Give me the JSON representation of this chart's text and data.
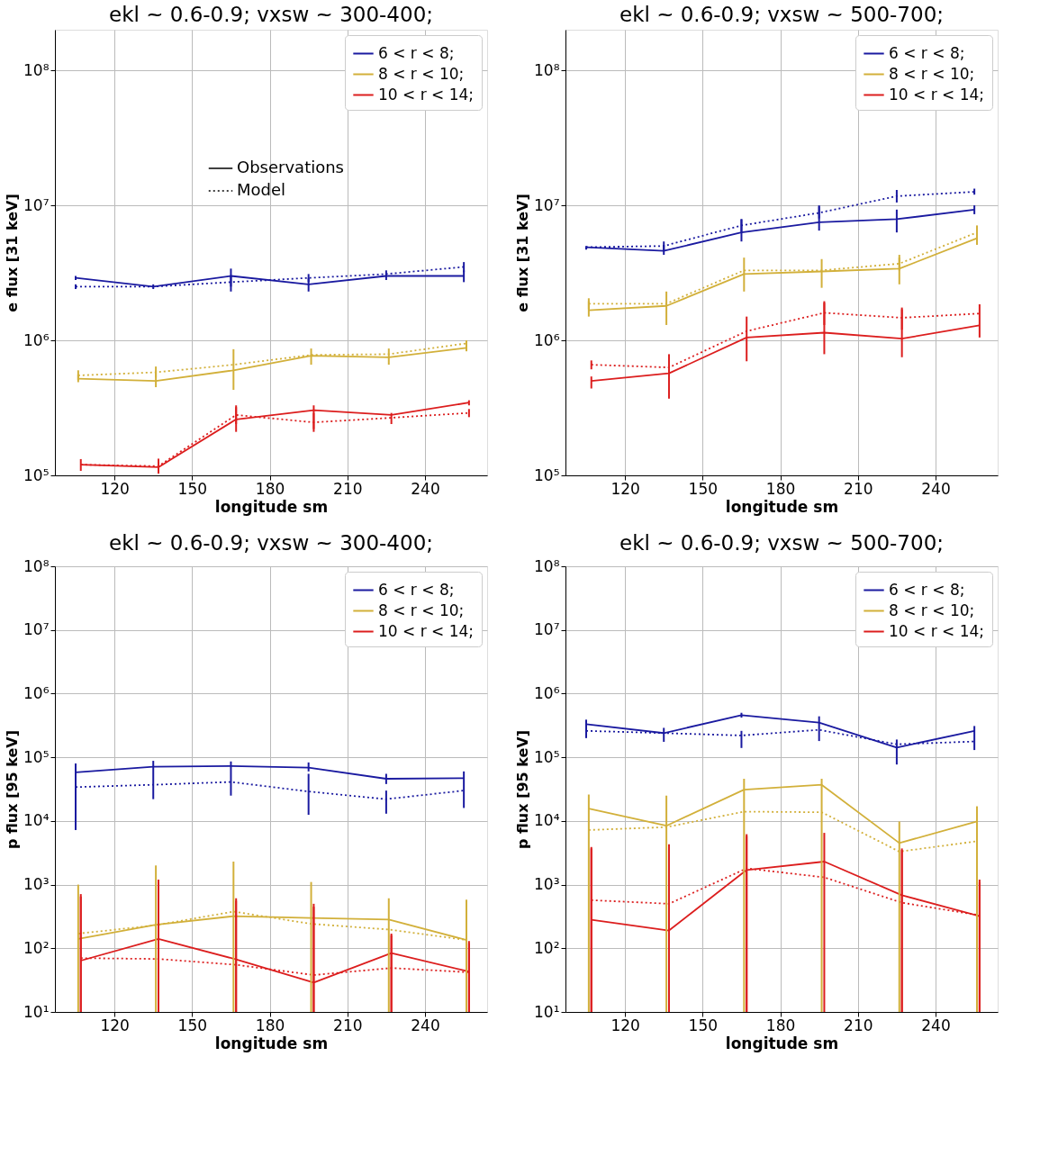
{
  "chart_data": [
    {
      "type": "line",
      "title": "ekl ~ 0.6-0.9; vxsw ~ 300-400;",
      "xlabel": "longitude sm",
      "ylabel": "e flux [31 keV]",
      "log": "y",
      "grid": true,
      "legend": "top right",
      "annotations": [
        "Observations",
        "Model"
      ],
      "xlim": [
        97,
        264
      ],
      "xticks": [
        120,
        150,
        180,
        210,
        240
      ],
      "ylim": [
        100000.0,
        200000000.0
      ],
      "yticks": [
        {
          "value": 100000.0,
          "label": "10⁵"
        },
        {
          "value": 1000000.0,
          "label": "10⁶"
        },
        {
          "value": 10000000.0,
          "label": "10⁷"
        },
        {
          "value": 100000000.0,
          "label": "10⁸"
        }
      ],
      "series": [
        {
          "name": "6 < r < 8;",
          "color": "#1a1aa0",
          "line_style": "solid",
          "x": [
            105,
            135,
            165,
            195,
            225,
            255
          ],
          "values": [
            2900000.0,
            2500000.0,
            3000000.0,
            2600000.0,
            3000000.0,
            3000000.0
          ],
          "errors": [
            [
              2800000.0,
              3000000.0
            ],
            [
              2400000.0,
              2600000.0
            ],
            [
              2500000.0,
              3400000.0
            ],
            [
              2300000.0,
              2900000.0
            ],
            [
              2800000.0,
              3300000.0
            ],
            [
              2700000.0,
              3300000.0
            ]
          ]
        },
        {
          "name": "8 < r < 10;",
          "color": "#d2b03a",
          "line_style": "solid",
          "x": [
            106,
            136,
            166,
            196,
            226,
            256
          ],
          "values": [
            520000.0,
            500000.0,
            600000.0,
            770000.0,
            750000.0,
            880000.0
          ],
          "errors": [
            [
              490000.0,
              560000.0
            ],
            [
              450000.0,
              600000.0
            ],
            [
              430000.0,
              860000.0
            ],
            [
              660000.0,
              870000.0
            ],
            [
              660000.0,
              870000.0
            ],
            [
              830000.0,
              970000.0
            ]
          ]
        },
        {
          "name": "10 < r < 14;",
          "color": "#dc1e1e",
          "line_style": "solid",
          "x": [
            107,
            137,
            167,
            197,
            227,
            257
          ],
          "values": [
            120000.0,
            115000.0,
            260000.0,
            304000.0,
            280000.0,
            346000.0
          ],
          "errors": [
            [
              108000.0,
              132000.0
            ],
            [
              103000.0,
              133000.0
            ],
            [
              210000.0,
              330000.0
            ],
            [
              220000.0,
              330000.0
            ],
            [
              240000.0,
              290000.0
            ],
            [
              330000.0,
              360000.0
            ]
          ]
        },
        {
          "color": "#1a1aa0",
          "line_style": "dotted",
          "x": [
            105,
            135,
            165,
            195,
            225,
            255
          ],
          "values": [
            2500000.0,
            2500000.0,
            2700000.0,
            2900000.0,
            3100000.0,
            3500000.0
          ],
          "errors": [
            [
              2400000.0,
              2600000.0
            ],
            null,
            [
              2300000.0,
              3000000.0
            ],
            [
              2700000.0,
              3100000.0
            ],
            null,
            [
              3200000.0,
              3800000.0
            ]
          ]
        },
        {
          "color": "#d2b03a",
          "line_style": "dotted",
          "x": [
            106,
            136,
            166,
            196,
            226,
            256
          ],
          "values": [
            550000.0,
            580000.0,
            660000.0,
            780000.0,
            790000.0,
            950000.0
          ],
          "errors": [
            [
              510000.0,
              600000.0
            ],
            [
              530000.0,
              640000.0
            ],
            null,
            null,
            null,
            [
              880000.0,
              1000000.0
            ]
          ]
        },
        {
          "color": "#dc1e1e",
          "line_style": "dotted",
          "x": [
            107,
            137,
            167,
            197,
            227,
            257
          ],
          "values": [
            120000.0,
            117000.0,
            280000.0,
            247000.0,
            267000.0,
            290000.0
          ],
          "errors": [
            null,
            [
              107000.0,
              125000.0
            ],
            [
              240000.0,
              320000.0
            ],
            [
              210000.0,
              290000.0
            ],
            null,
            [
              270000.0,
              310000.0
            ]
          ]
        }
      ]
    },
    {
      "type": "line",
      "title": "ekl ~ 0.6-0.9; vxsw ~ 500-700;",
      "xlabel": "longitude sm",
      "ylabel": "e flux [31 keV]",
      "log": "y",
      "grid": true,
      "legend": "top right",
      "xlim": [
        97,
        264
      ],
      "xticks": [
        120,
        150,
        180,
        210,
        240
      ],
      "ylim": [
        100000.0,
        200000000.0
      ],
      "yticks": [
        {
          "value": 100000.0,
          "label": "10⁵"
        },
        {
          "value": 1000000.0,
          "label": "10⁶"
        },
        {
          "value": 10000000.0,
          "label": "10⁷"
        },
        {
          "value": 100000000.0,
          "label": "10⁸"
        }
      ],
      "series": [
        {
          "name": "6 < r < 8;",
          "color": "#1a1aa0",
          "line_style": "solid",
          "x": [
            105,
            135,
            165,
            195,
            225,
            255
          ],
          "values": [
            4900000.0,
            4600000.0,
            6300000.0,
            7500000.0,
            7900000.0,
            9300000.0
          ],
          "errors": [
            [
              4700000.0,
              5000000.0
            ],
            [
              4300000.0,
              5100000.0
            ],
            [
              5400000.0,
              7900000.0
            ],
            [
              6500000.0,
              10000000.0
            ],
            [
              6300000.0,
              9300000.0
            ],
            [
              8600000.0,
              10000000.0
            ]
          ]
        },
        {
          "name": "8 < r < 10;",
          "color": "#d2b03a",
          "line_style": "solid",
          "x": [
            106,
            136,
            166,
            196,
            226,
            256
          ],
          "values": [
            1670000.0,
            1800000.0,
            3100000.0,
            3240000.0,
            3400000.0,
            5700000.0
          ],
          "errors": [
            [
              1500000.0,
              1950000.0
            ],
            [
              1300000.0,
              2300000.0
            ],
            [
              2300000.0,
              4100000.0
            ],
            [
              2450000.0,
              4000000.0
            ],
            [
              2600000.0,
              4300000.0
            ],
            [
              5100000.0,
              7100000.0
            ]
          ]
        },
        {
          "name": "10 < r < 14;",
          "color": "#dc1e1e",
          "line_style": "solid",
          "x": [
            107,
            137,
            167,
            197,
            227,
            257
          ],
          "values": [
            500000.0,
            570000.0,
            1050000.0,
            1140000.0,
            1030000.0,
            1290000.0
          ],
          "errors": [
            [
              440000.0,
              540000.0
            ],
            [
              370000.0,
              790000.0
            ],
            [
              700000.0,
              1500000.0
            ],
            [
              790000.0,
              1900000.0
            ],
            [
              750000.0,
              1700000.0
            ],
            [
              1050000.0,
              1850000.0
            ]
          ]
        },
        {
          "color": "#1a1aa0",
          "line_style": "dotted",
          "x": [
            105,
            135,
            165,
            195,
            225,
            255
          ],
          "values": [
            4900000.0,
            5000000.0,
            7100000.0,
            8800000.0,
            11700000.0,
            12600000.0
          ],
          "errors": [
            null,
            [
              4600000.0,
              5400000.0
            ],
            [
              6400000.0,
              7900000.0
            ],
            [
              8000000.0,
              9800000.0
            ],
            [
              10500000.0,
              13000000.0
            ],
            [
              12000000.0,
              13300000.0
            ]
          ]
        },
        {
          "color": "#d2b03a",
          "line_style": "dotted",
          "x": [
            106,
            136,
            166,
            196,
            226,
            256
          ],
          "values": [
            1870000.0,
            1870000.0,
            3300000.0,
            3300000.0,
            3700000.0,
            6300000.0
          ],
          "errors": [
            [
              1700000.0,
              2050000.0
            ],
            null,
            null,
            null,
            [
              3300000.0,
              4100000.0
            ],
            [
              5800000.0,
              6900000.0
            ]
          ]
        },
        {
          "color": "#dc1e1e",
          "line_style": "dotted",
          "x": [
            107,
            137,
            167,
            197,
            227,
            257
          ],
          "values": [
            660000.0,
            630000.0,
            1170000.0,
            1600000.0,
            1470000.0,
            1580000.0
          ],
          "errors": [
            [
              610000.0,
              710000.0
            ],
            null,
            null,
            [
              1300000.0,
              1950000.0
            ],
            [
              1200000.0,
              1750000.0
            ],
            null
          ]
        }
      ]
    },
    {
      "type": "line",
      "title": "ekl ~ 0.6-0.9; vxsw ~ 300-400;",
      "xlabel": "longitude sm",
      "ylabel": "p flux [95 keV]",
      "log": "y",
      "grid": true,
      "legend": "top right",
      "xlim": [
        97,
        264
      ],
      "xticks": [
        120,
        150,
        180,
        210,
        240
      ],
      "ylim": [
        10,
        100000000.0
      ],
      "yticks": [
        {
          "value": 10,
          "label": "10¹"
        },
        {
          "value": 100,
          "label": "10²"
        },
        {
          "value": 1000,
          "label": "10³"
        },
        {
          "value": 10000.0,
          "label": "10⁴"
        },
        {
          "value": 100000.0,
          "label": "10⁵"
        },
        {
          "value": 1000000.0,
          "label": "10⁶"
        },
        {
          "value": 10000000.0,
          "label": "10⁷"
        },
        {
          "value": 100000000.0,
          "label": "10⁸"
        }
      ],
      "series": [
        {
          "name": "6 < r < 8;",
          "color": "#1a1aa0",
          "line_style": "solid",
          "x": [
            105,
            135,
            165,
            195,
            225,
            255
          ],
          "values": [
            58000.0,
            71000.0,
            73000.0,
            69000.0,
            46000.0,
            47000.0
          ],
          "errors": [
            [
              7200.0,
              80000.0
            ],
            [
              22000.0,
              88000.0
            ],
            [
              25000.0,
              86000.0
            ],
            [
              60000.0,
              83000.0
            ],
            [
              38000.0,
              55000.0
            ],
            [
              16000.0,
              60000.0
            ]
          ]
        },
        {
          "name": "8 < r < 10;",
          "color": "#d2b03a",
          "line_style": "solid",
          "x": [
            106,
            136,
            166,
            196,
            226,
            256
          ],
          "values": [
            140,
            235,
            319,
            300,
            282,
            135
          ],
          "errors": [
            [
              10,
              1000
            ],
            [
              10,
              2000
            ],
            [
              10,
              2300
            ],
            [
              10,
              1100
            ],
            [
              10,
              610
            ],
            [
              10,
              580
            ]
          ]
        },
        {
          "name": "10 < r < 14;",
          "color": "#dc1e1e",
          "line_style": "solid",
          "x": [
            107,
            137,
            167,
            197,
            227,
            257
          ],
          "values": [
            64,
            140,
            67,
            29,
            84,
            43
          ],
          "errors": [
            [
              10,
              710
            ],
            [
              10,
              1200
            ],
            [
              10,
              610
            ],
            [
              10,
              500
            ],
            [
              10,
              170
            ],
            [
              10,
              130
            ]
          ]
        },
        {
          "color": "#1a1aa0",
          "line_style": "dotted",
          "x": [
            105,
            135,
            165,
            195,
            225,
            255
          ],
          "values": [
            34000.0,
            37000.0,
            41000.0,
            29000.0,
            22000.0,
            30000.0
          ],
          "errors": [
            null,
            null,
            null,
            [
              12500.0,
              55000.0
            ],
            [
              13000.0,
              30000.0
            ],
            null
          ]
        },
        {
          "color": "#d2b03a",
          "line_style": "dotted",
          "x": [
            106,
            136,
            166,
            196,
            226,
            256
          ],
          "values": [
            170,
            230,
            377,
            242,
            197,
            135
          ]
        },
        {
          "color": "#dc1e1e",
          "line_style": "dotted",
          "x": [
            107,
            137,
            167,
            197,
            227,
            257
          ],
          "values": [
            70,
            68,
            55,
            38,
            49,
            42
          ],
          "errors": [
            [
              10,
              650
            ],
            [
              10,
              1100
            ],
            [
              10,
              560
            ],
            [
              10,
              450
            ],
            [
              10,
              160
            ],
            [
              10,
              120
            ]
          ]
        }
      ]
    },
    {
      "type": "line",
      "title": "ekl ~ 0.6-0.9; vxsw ~ 500-700;",
      "xlabel": "longitude sm",
      "ylabel": "p flux [95 keV]",
      "log": "y",
      "grid": true,
      "legend": "top right",
      "xlim": [
        97,
        264
      ],
      "xticks": [
        120,
        150,
        180,
        210,
        240
      ],
      "ylim": [
        10,
        100000000.0
      ],
      "yticks": [
        {
          "value": 10,
          "label": "10¹"
        },
        {
          "value": 100,
          "label": "10²"
        },
        {
          "value": 1000,
          "label": "10³"
        },
        {
          "value": 10000.0,
          "label": "10⁴"
        },
        {
          "value": 100000.0,
          "label": "10⁵"
        },
        {
          "value": 1000000.0,
          "label": "10⁶"
        },
        {
          "value": 10000000.0,
          "label": "10⁷"
        },
        {
          "value": 100000000.0,
          "label": "10⁸"
        }
      ],
      "series": [
        {
          "name": "6 < r < 8;",
          "color": "#1a1aa0",
          "line_style": "solid",
          "x": [
            105,
            135,
            165,
            195,
            225,
            255
          ],
          "values": [
            330000.0,
            240000.0,
            460000.0,
            350000.0,
            142000.0,
            260000.0
          ],
          "errors": [
            [
              200000.0,
              390000.0
            ],
            [
              175000.0,
              290000.0
            ],
            [
              420000.0,
              500000.0
            ],
            [
              180000.0,
              440000.0
            ],
            [
              77000.0,
              190000.0
            ],
            [
              130000.0,
              310000.0
            ]
          ]
        },
        {
          "name": "8 < r < 10;",
          "color": "#d2b03a",
          "line_style": "solid",
          "x": [
            106,
            136,
            166,
            196,
            226,
            256
          ],
          "values": [
            15600.0,
            8400.0,
            31000.0,
            37000.0,
            4500.0,
            9800.0
          ],
          "errors": [
            [
              10,
              26000.0
            ],
            [
              10,
              25000.0
            ],
            [
              10,
              46000.0
            ],
            [
              10,
              46000.0
            ],
            [
              10,
              9800.0
            ],
            [
              10,
              17000.0
            ]
          ]
        },
        {
          "name": "10 < r < 14;",
          "color": "#dc1e1e",
          "line_style": "solid",
          "x": [
            107,
            137,
            167,
            197,
            227,
            257
          ],
          "values": [
            280,
            190,
            1700,
            2300,
            680,
            320
          ],
          "errors": [
            [
              10,
              3900
            ],
            [
              10,
              4300
            ],
            [
              10,
              6200
            ],
            [
              10,
              6500
            ],
            [
              10,
              3700
            ],
            [
              10,
              1200
            ]
          ]
        },
        {
          "color": "#1a1aa0",
          "line_style": "dotted",
          "x": [
            105,
            135,
            165,
            195,
            225,
            255
          ],
          "values": [
            260000.0,
            240000.0,
            220000.0,
            270000.0,
            160000.0,
            177000.0
          ],
          "errors": [
            null,
            null,
            [
              140000.0,
              260000.0
            ],
            null,
            null,
            null
          ]
        },
        {
          "color": "#d2b03a",
          "line_style": "dotted",
          "x": [
            106,
            136,
            166,
            196,
            226,
            256
          ],
          "values": [
            7200.0,
            8000.0,
            14000.0,
            13700.0,
            3300.0,
            4800.0
          ]
        },
        {
          "color": "#dc1e1e",
          "line_style": "dotted",
          "x": [
            107,
            137,
            167,
            197,
            227,
            257
          ],
          "values": [
            570,
            500,
            1800,
            1300,
            520,
            330
          ],
          "errors": [
            [
              10,
              3700
            ],
            null,
            [
              10,
              5800
            ],
            null,
            [
              10,
              3500
            ],
            [
              10,
              1100
            ]
          ]
        }
      ]
    }
  ]
}
